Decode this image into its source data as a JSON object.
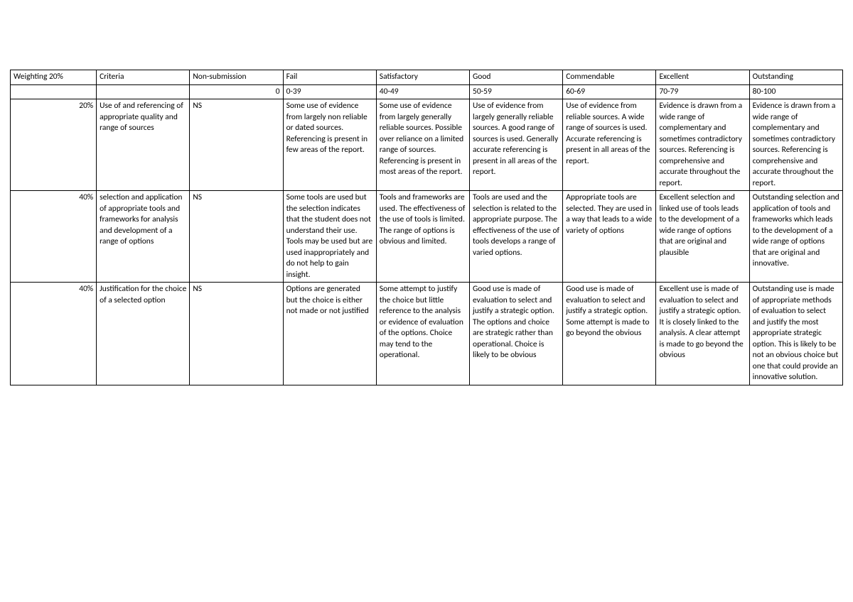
{
  "header": {
    "weighting": "Weighting 20%",
    "criteria": "Criteria",
    "non_submission": "Non-submission",
    "fail": "Fail",
    "satisfactory": "Satisfactory",
    "good": "Good",
    "commendable": "Commendable",
    "excellent": "Excellent",
    "outstanding": "Outstanding"
  },
  "ranges": {
    "ns_zero": "0",
    "fail": "0-39",
    "satisfactory": "40-49",
    "good": "50-59",
    "commendable": "60-69",
    "excellent": "70-79",
    "outstanding": "80-100"
  },
  "rows": [
    {
      "weight": "20%",
      "criteria": "Use of and referencing of appropriate quality and range of sources",
      "ns": "NS",
      "fail": "Some use of evidence from largely non reliable or dated sources. Referencing is present in few areas of the report.",
      "satisfactory": "Some use of evidence from largely generally reliable sources. Possible over reliance on a limited range of sources. Referencing is present in most areas of the report.",
      "good": "Use of evidence from largely generally reliable sources. A good range of sources is used. Generally accurate referencing is present in all areas of the report.",
      "commendable": "Use of evidence from reliable sources. A wide range of sources is used. Accurate referencing is present in all areas of the report.",
      "excellent": "Evidence is drawn from a wide range of complementary and sometimes contradictory sources. Referencing is comprehensive and accurate throughout the report.",
      "outstanding": "Evidence is drawn from a wide range of complementary and sometimes contradictory sources. Referencing is comprehensive and accurate throughout the report."
    },
    {
      "weight": "40%",
      "criteria": "selection and application of appropriate tools and frameworks for analysis and development of a range of options",
      "ns": "NS",
      "fail": "Some tools are used but the selection indicates that the student does not understand their use. Tools may be used but are used inappropriately and do not help to gain insight.",
      "satisfactory": "Tools and frameworks are used. The effectiveness of the use of tools is limited. The range of options is obvious and limited.",
      "good": "Tools are used and the selection is related to the appropriate purpose. The effectiveness of the use of tools develops a range of varied options.",
      "commendable": "Appropriate tools are selected. They are used in a way that leads to a wide variety of options",
      "excellent": "Excellent selection and linked use of tools leads to the development of a wide range of options that are original and plausible",
      "outstanding": "Outstanding selection and application of tools and frameworks which leads to the development of a wide range of options that are original and innovative."
    },
    {
      "weight": "40%",
      "criteria": "Justification for the choice of a selected option",
      "ns": "NS",
      "fail": "Options are generated but the choice is either not made or not justified",
      "satisfactory": "Some attempt to justify the choice but little reference to the analysis or evidence of evaluation of the options. Choice may tend to the operational.",
      "good": "Good use is made of evaluation to select and justify a strategic option. The options and choice are strategic rather than operational. Choice is likely to be obvious",
      "commendable": "Good use is made of evaluation to select and justify a strategic option. Some attempt is made to go beyond the obvious",
      "excellent": "Excellent use is made of evaluation to select and justify a strategic option. It is closely linked to the analysis. A clear attempt is made to go beyond the obvious",
      "outstanding": "Outstanding use is made of appropriate methods of evaluation to select and justify the most appropriate strategic option. This is likely to be not an obvious choice but one that could provide an innovative solution."
    }
  ]
}
